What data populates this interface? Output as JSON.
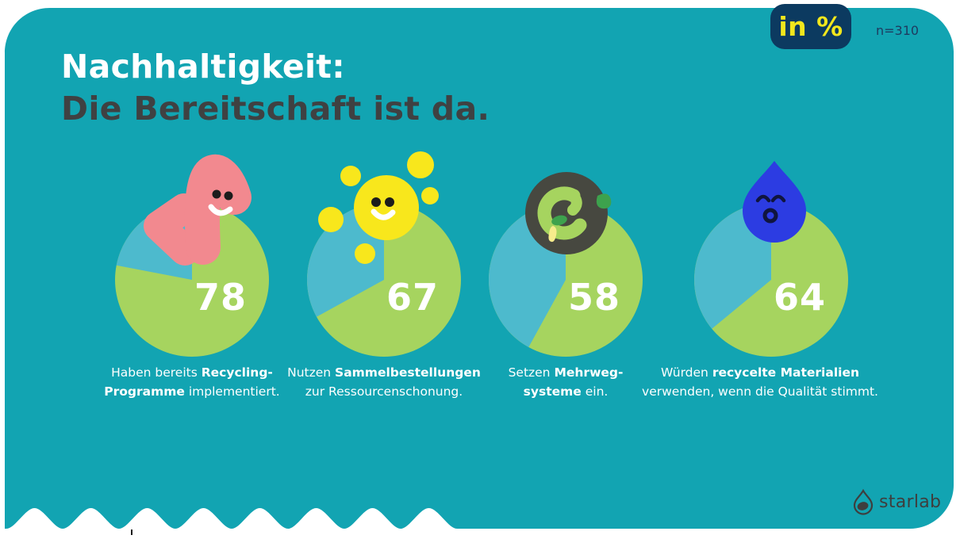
{
  "header": {
    "title_line1": "Nachhaltigkeit:",
    "title_line2": "Die Bereitschaft ist da.",
    "unit_badge": "in %",
    "sample_label": "n=310"
  },
  "chart_data": {
    "type": "pie",
    "title": "Nachhaltigkeit: Die Bereitschaft ist da.",
    "unit": "in %",
    "sample_size_label": "n=310",
    "value_range": [
      0,
      100
    ],
    "slice_color": "#A6D45F",
    "remainder_color": "#4DBACD",
    "items": [
      {
        "value": 78,
        "icon": "recycling-blob-icon",
        "caption_lines": [
          [
            {
              "text": "Haben bereits ",
              "bold": false
            },
            {
              "text": "Recycling-",
              "bold": true
            }
          ],
          [
            {
              "text": "Programme",
              "bold": true
            },
            {
              "text": " implementiert.",
              "bold": false
            }
          ]
        ]
      },
      {
        "value": 67,
        "icon": "sun-icon",
        "caption_lines": [
          [
            {
              "text": "Nutzen ",
              "bold": false
            },
            {
              "text": "Sammelbestellungen",
              "bold": true
            }
          ],
          [
            {
              "text": "zur Ressourcenschonung.",
              "bold": false
            }
          ]
        ]
      },
      {
        "value": 58,
        "icon": "reuse-ring-icon",
        "caption_lines": [
          [
            {
              "text": "Setzen ",
              "bold": false
            },
            {
              "text": "Mehrweg-",
              "bold": true
            }
          ],
          [
            {
              "text": "systeme",
              "bold": true
            },
            {
              "text": " ein.",
              "bold": false
            }
          ]
        ]
      },
      {
        "value": 64,
        "icon": "waterdrop-icon",
        "caption_lines": [
          [
            {
              "text": "Würden ",
              "bold": false
            },
            {
              "text": "recycelte Materialien",
              "bold": true
            }
          ],
          [
            {
              "text": "verwenden, wenn die Qualität stimmt.",
              "bold": false
            }
          ]
        ]
      }
    ]
  },
  "footer": {
    "brand": "starlab"
  },
  "colors": {
    "card_teal": "#12A4B2",
    "pie_green": "#A6D45F",
    "pie_blue": "#4DBACD",
    "badge_navy": "#0C3A60",
    "badge_yellow": "#F2E71C",
    "title_dark": "#3F4142",
    "blob_pink": "#F2898F",
    "sun_yellow": "#F8E71C",
    "ring_dark": "#474840",
    "leaf_green": "#3DA24D",
    "drip_yellow": "#F6EC8C",
    "drop_blue": "#2C3CE2",
    "logo_gray": "#3E3E3E"
  }
}
